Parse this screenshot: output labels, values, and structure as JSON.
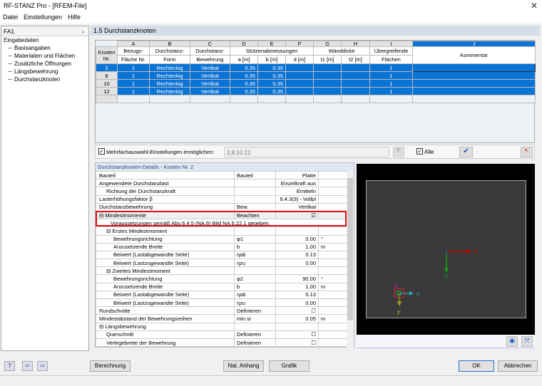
{
  "window": {
    "title": "RF-STANZ Pro - [RFEM-File]",
    "close": "✕"
  },
  "menu": [
    "Datei",
    "Einstellungen",
    "Hilfe"
  ],
  "left": {
    "case": "FA1",
    "root": "Eingabedaten",
    "items": [
      "Basisangaben",
      "Materialien und Flächen",
      "Zusätzliche Öffnungen",
      "Längsbewehrung",
      "Durchstanzknoten"
    ]
  },
  "section_title": "1.5 Durchstanzknoten",
  "table": {
    "letters": [
      "A",
      "B",
      "C",
      "D",
      "E",
      "F",
      "G",
      "H",
      "I",
      "J"
    ],
    "rowhead": [
      "Knoten",
      "Nr."
    ],
    "headers": {
      "A": [
        "Bezugs-",
        "Fläche Nr."
      ],
      "B": [
        "Durchstanz-",
        "Form"
      ],
      "C": [
        "Durchstanz-",
        "Bewehrung"
      ],
      "DEF": "Stützenabmessungen",
      "D": "a [m]",
      "E": "b [m]",
      "F": "d [m]",
      "GH": "Wanddicke",
      "G": "t1 [m]",
      "H": "t2 [m]",
      "I": [
        "Übergreifende",
        "Flächen"
      ],
      "J": "Kommentar"
    },
    "rows": [
      {
        "nr": "2",
        "a": "1",
        "b": "Rechteckig",
        "c": "Vertikal",
        "d": "0.35",
        "e": "0.35",
        "f": "",
        "g": "",
        "h": "",
        "i": "1",
        "j": ""
      },
      {
        "nr": "8",
        "a": "1",
        "b": "Rechteckig",
        "c": "Vertikal",
        "d": "0.35",
        "e": "0.35",
        "f": "",
        "g": "",
        "h": "",
        "i": "1",
        "j": ""
      },
      {
        "nr": "10",
        "a": "1",
        "b": "Rechteckig",
        "c": "Vertikal",
        "d": "0.35",
        "e": "0.35",
        "f": "",
        "g": "",
        "h": "",
        "i": "1",
        "j": ""
      },
      {
        "nr": "12",
        "a": "1",
        "b": "Rechteckig",
        "c": "Vertikal",
        "d": "0.35",
        "e": "0.35",
        "f": "",
        "g": "",
        "h": "",
        "i": "1",
        "j": ""
      }
    ]
  },
  "multi": {
    "label": "Mehrfachauswahl-Einstellungen ermöglichen:",
    "value": "2,8,10,12",
    "checked": true,
    "all_label": "Alle",
    "all_checked": true
  },
  "details": {
    "title": "Durchstanzknoten-Details - Knoten Nr.  2",
    "rows": [
      {
        "name": "Bauteil",
        "sym": "Bauteil",
        "val": "Platte",
        "unit": "",
        "indent": 0
      },
      {
        "name": "Angewendete Durchstanzlast",
        "sym": "",
        "val": "Einzelkraft aus",
        "unit": "",
        "indent": 0
      },
      {
        "name": "Richtung der Durchstanzkraft",
        "sym": "",
        "val": "Emitteln",
        "unit": "",
        "indent": 1
      },
      {
        "name": "Lasterhöhungsfaktor β",
        "sym": "",
        "val": "6.4.3(3) - Vollpl",
        "unit": "",
        "indent": 0
      },
      {
        "name": "Durchstanzbewehrung",
        "sym": "Bew.",
        "val": "Vertikal",
        "unit": "",
        "indent": 0
      },
      {
        "name": "⊟ Mindestmomente",
        "sym": "Beachten",
        "val": "☑",
        "unit": "",
        "indent": 0,
        "gray": true
      },
      {
        "name": "Voraussetzungen gemäß Abs.6.4.5 (NA.6) Bild NA.6.22.1 gegeben.",
        "span": true,
        "indent": 1
      },
      {
        "name": "⊟ Erstes Mindestmoment",
        "sym": "",
        "val": "",
        "unit": "",
        "indent": 1
      },
      {
        "name": "Bewehrungsrichtung",
        "sym": "φ1",
        "val": "0.00",
        "unit": "°",
        "indent": 2
      },
      {
        "name": "Anzusetzende Breite",
        "sym": "b",
        "val": "1.00",
        "unit": "m",
        "indent": 2
      },
      {
        "name": "Beiwert (Lastabgewandte Seite)",
        "sym": "ηab",
        "val": "0.13",
        "unit": "",
        "indent": 2
      },
      {
        "name": "Beiwert (Lastzugewandte Seite)",
        "sym": "ηzu",
        "val": "0.00",
        "unit": "",
        "indent": 2
      },
      {
        "name": "⊟ Zweites Mindestmoment",
        "sym": "",
        "val": "",
        "unit": "",
        "indent": 1
      },
      {
        "name": "Bewehrungsrichtung",
        "sym": "φ2",
        "val": "90.00",
        "unit": "°",
        "indent": 2
      },
      {
        "name": "Anzusetzende Breite",
        "sym": "b",
        "val": "1.00",
        "unit": "m",
        "indent": 2
      },
      {
        "name": "Beiwert (Lastabgewandte Seite)",
        "sym": "ηab",
        "val": "0.13",
        "unit": "",
        "indent": 2
      },
      {
        "name": "Beiwert (Lastzugewandte Seite)",
        "sym": "ηzu",
        "val": "0.00",
        "unit": "",
        "indent": 2
      },
      {
        "name": "Rundschnitte",
        "sym": "Definieren",
        "val": "☐",
        "unit": "",
        "indent": 0
      },
      {
        "name": "Mindestabstand der Bewehrungsreihen",
        "sym": "min sr",
        "val": "0.05",
        "unit": "m",
        "indent": 0
      },
      {
        "name": "⊟ Längsbewehrung",
        "sym": "",
        "val": "",
        "unit": "",
        "indent": 0
      },
      {
        "name": "Querschnitt",
        "sym": "Definieren",
        "val": "☐",
        "unit": "",
        "indent": 1
      },
      {
        "name": "Verlegebreite der Bewehrung",
        "sym": "Definieren",
        "val": "☐",
        "unit": "",
        "indent": 1
      }
    ]
  },
  "graphic": {
    "axes": {
      "x": "X",
      "y": "Y",
      "z": "Z"
    },
    "local": {
      "x": "x'",
      "y": "y'"
    },
    "node": "2",
    "colors": {
      "x": "#c00000",
      "y": "#10a010",
      "z": "#2020c0",
      "local_x": "#20b0c0",
      "local_y": "#c0c020",
      "node": "#c020c0"
    }
  },
  "buttons": {
    "berechnung": "Berechnung",
    "nat": "Nat. Anhang",
    "grafik": "Grafik",
    "ok": "OK",
    "cancel": "Abbrechen"
  },
  "colors": {
    "selection": "#0a73d6",
    "highlight": "#e01010"
  }
}
